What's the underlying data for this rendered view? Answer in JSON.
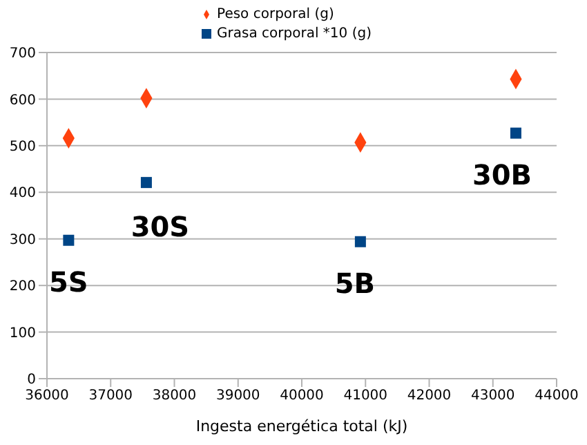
{
  "chart_data": {
    "type": "scatter",
    "xlabel": "Ingesta energética total (kJ)",
    "x": [
      36340,
      37560,
      40920,
      43360
    ],
    "series": [
      {
        "name": "Peso corporal (g)",
        "color": "#ff420e",
        "marker": "diamond",
        "values": [
          516,
          602,
          507,
          643
        ]
      },
      {
        "name": "Grasa corporal *10 (g)",
        "color": "#004586",
        "marker": "square",
        "values": [
          297,
          421,
          294,
          527
        ]
      }
    ],
    "xlim": [
      36000,
      44000
    ],
    "xticks": [
      36000,
      37000,
      38000,
      39000,
      40000,
      41000,
      42000,
      43000,
      44000
    ],
    "ylim": [
      0,
      700
    ],
    "yticks": [
      0,
      100,
      200,
      300,
      400,
      500,
      600,
      700
    ],
    "grid": "y",
    "legend": "top",
    "annotations": [
      {
        "text": "5S",
        "x": 36340,
        "y": 297
      },
      {
        "text": "30S",
        "x": 37560,
        "y": 421
      },
      {
        "text": "5B",
        "x": 40920,
        "y": 294
      },
      {
        "text": "30B",
        "x": 43360,
        "y": 527
      }
    ]
  }
}
